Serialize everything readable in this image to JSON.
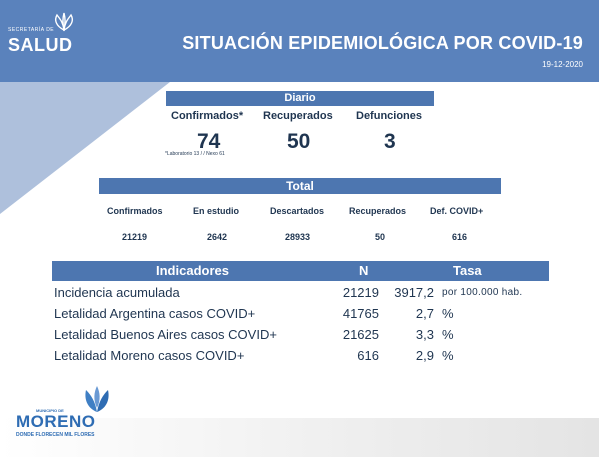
{
  "header": {
    "logo_sub": "SECRETARÍA DE",
    "logo_name": "SALUD",
    "title": "SITUACIÓN EPIDEMIOLÓGICA POR COVID-19",
    "date": "19-12-2020"
  },
  "daily": {
    "title": "Diario",
    "columns": [
      {
        "label": "Confirmados*",
        "value": "74"
      },
      {
        "label": "Recuperados",
        "value": "50"
      },
      {
        "label": "Defunciones",
        "value": "3"
      }
    ],
    "footnote": "*Laboratorio 13 / / Nexo 61"
  },
  "total": {
    "title": "Total",
    "columns": [
      {
        "label": "Confirmados",
        "value": "21219"
      },
      {
        "label": "En estudio",
        "value": "2642"
      },
      {
        "label": "Descartados",
        "value": "28933"
      },
      {
        "label": "Recuperados",
        "value": "50"
      },
      {
        "label": "Def. COVID+",
        "value": "616"
      }
    ]
  },
  "indicators": {
    "headers": {
      "label": "Indicadores",
      "n": "N",
      "rate": "Tasa"
    },
    "rows": [
      {
        "label": "Incidencia acumulada",
        "n": "21219",
        "rate": "3917,2",
        "unit": "por 100.000 hab."
      },
      {
        "label": "Letalidad Argentina casos COVID+",
        "n": "41765",
        "rate": "2,7",
        "unit": "%"
      },
      {
        "label": "Letalidad Buenos Aires casos COVID+",
        "n": "21625",
        "rate": "3,3",
        "unit": "%"
      },
      {
        "label": "Letalidad Moreno casos COVID+",
        "n": "616",
        "rate": "2,9",
        "unit": "%"
      }
    ]
  },
  "footer": {
    "logo_label": "MUNICIPIO DE",
    "logo_name": "MORENO",
    "logo_tagline": "DONDE FLORECEN MIL FLORES"
  },
  "colors": {
    "header_blue": "#5a82bc",
    "bar_blue": "#4d76b0",
    "text_navy": "#1f3550",
    "moreno_blue": "#2e6cb3"
  }
}
